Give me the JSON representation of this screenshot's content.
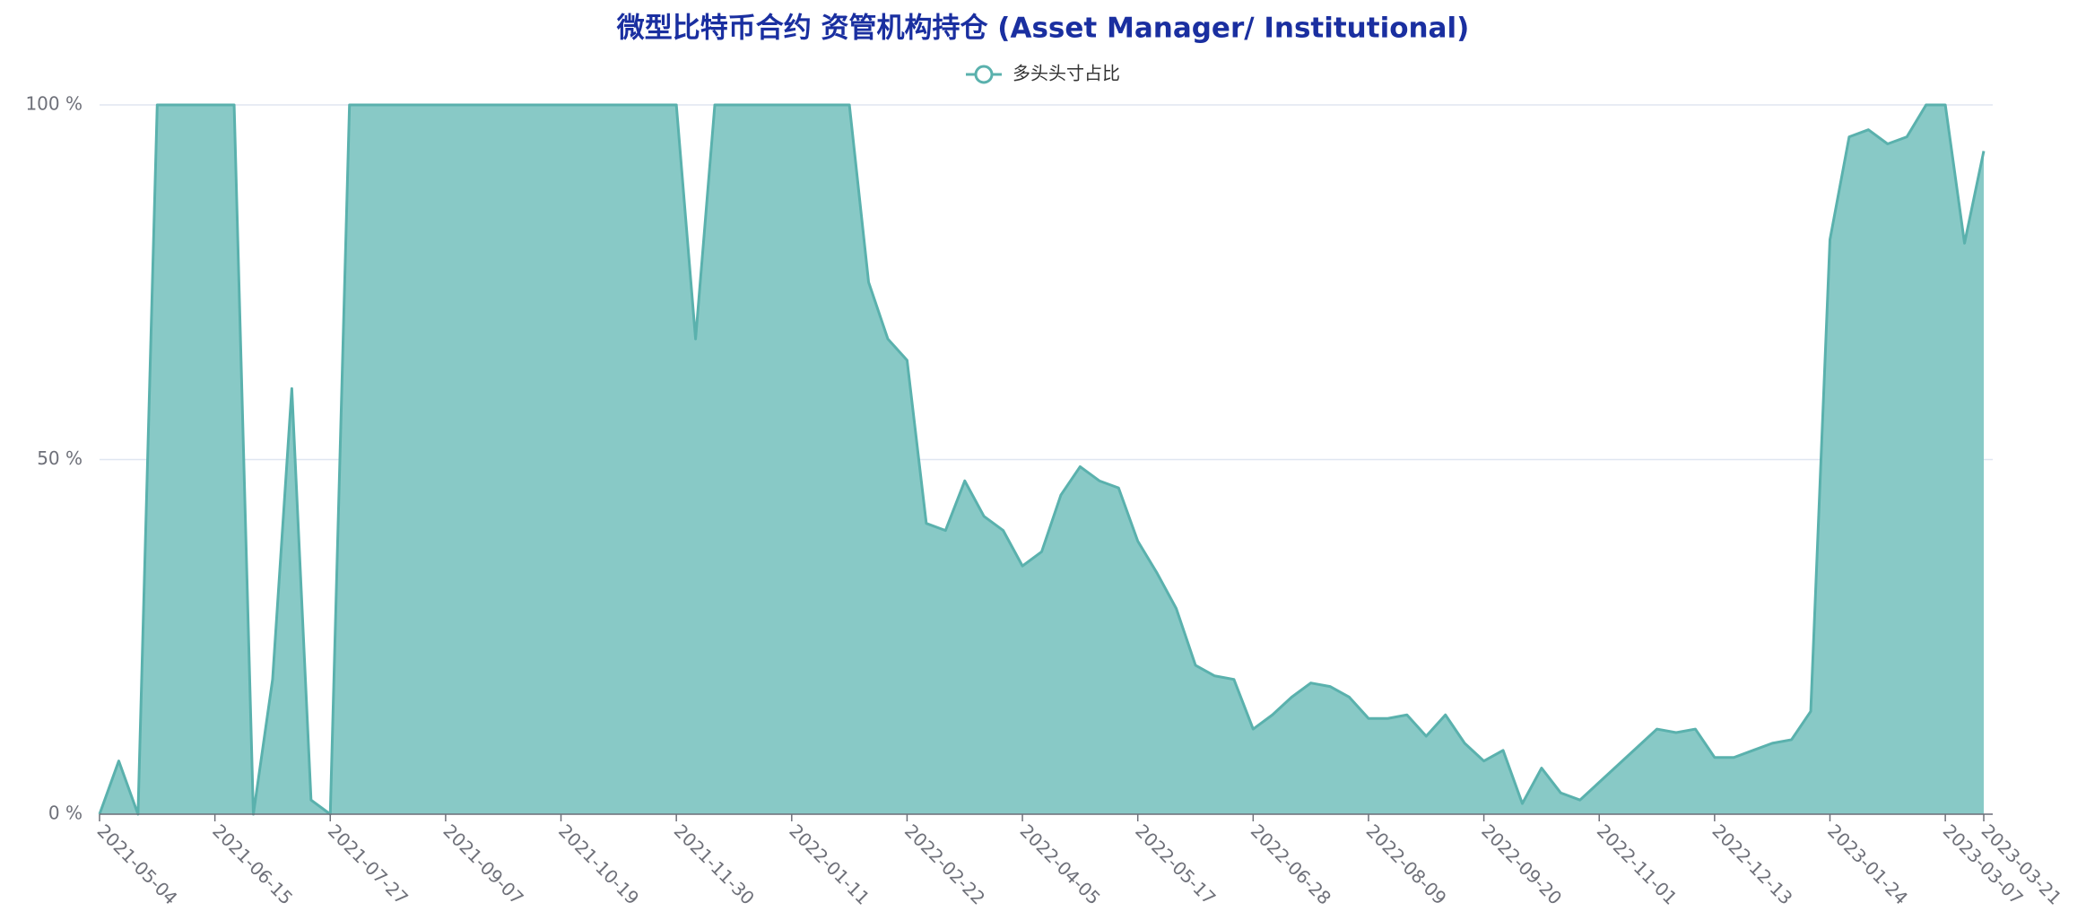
{
  "chart_data": {
    "type": "area",
    "title": "微型比特币合约 资管机构持仓 (Asset Manager/ Institutional)",
    "categories": [
      "2021-05-04",
      null,
      null,
      null,
      null,
      null,
      "2021-06-15",
      null,
      null,
      null,
      null,
      null,
      "2021-07-27",
      null,
      null,
      null,
      null,
      null,
      "2021-09-07",
      null,
      null,
      null,
      null,
      null,
      "2021-10-19",
      null,
      null,
      null,
      null,
      null,
      "2021-11-30",
      null,
      null,
      null,
      null,
      null,
      "2022-01-11",
      null,
      null,
      null,
      null,
      null,
      "2022-02-22",
      null,
      null,
      null,
      null,
      null,
      "2022-04-05",
      null,
      null,
      null,
      null,
      null,
      "2022-05-17",
      null,
      null,
      null,
      null,
      null,
      "2022-06-28",
      null,
      null,
      null,
      null,
      null,
      "2022-08-09",
      null,
      null,
      null,
      null,
      null,
      "2022-09-20",
      null,
      null,
      null,
      null,
      null,
      "2022-11-01",
      null,
      null,
      null,
      null,
      null,
      "2022-12-13",
      null,
      null,
      null,
      null,
      null,
      "2023-01-24",
      null,
      null,
      null,
      null,
      null,
      "2023-03-07",
      null,
      "2023-03-21"
    ],
    "series": [
      {
        "name": "多头头寸占比",
        "color": "#5ab1ad",
        "area_color": "#88c9c6",
        "values": [
          0,
          7.5,
          0,
          100,
          100,
          100,
          100,
          100,
          0,
          19,
          60,
          2,
          0,
          100,
          100,
          100,
          100,
          100,
          100,
          100,
          100,
          100,
          100,
          100,
          100,
          100,
          100,
          100,
          100,
          100,
          100,
          67,
          100,
          100,
          100,
          100,
          100,
          100,
          100,
          100,
          75,
          67,
          64,
          41,
          40,
          47,
          42,
          40,
          35,
          37,
          45,
          49,
          47,
          46,
          38.5,
          34,
          29,
          21,
          19.5,
          19,
          12,
          14,
          16.5,
          18.5,
          18,
          16.5,
          13.5,
          13.5,
          14,
          11,
          14,
          10,
          7.5,
          9,
          1.5,
          6.5,
          3,
          2,
          4.5,
          7,
          9.5,
          12,
          11.5,
          12,
          8,
          8,
          9,
          10,
          10.5,
          14.5,
          81,
          95.5,
          96.5,
          94.5,
          95.5,
          100,
          100,
          80.5,
          93.5
        ]
      }
    ],
    "ylim": [
      0,
      100
    ],
    "yticks": [
      {
        "value": 0,
        "label": "0 %"
      },
      {
        "value": 50,
        "label": "50 %"
      },
      {
        "value": 100,
        "label": "100 %"
      }
    ],
    "grid": true
  }
}
